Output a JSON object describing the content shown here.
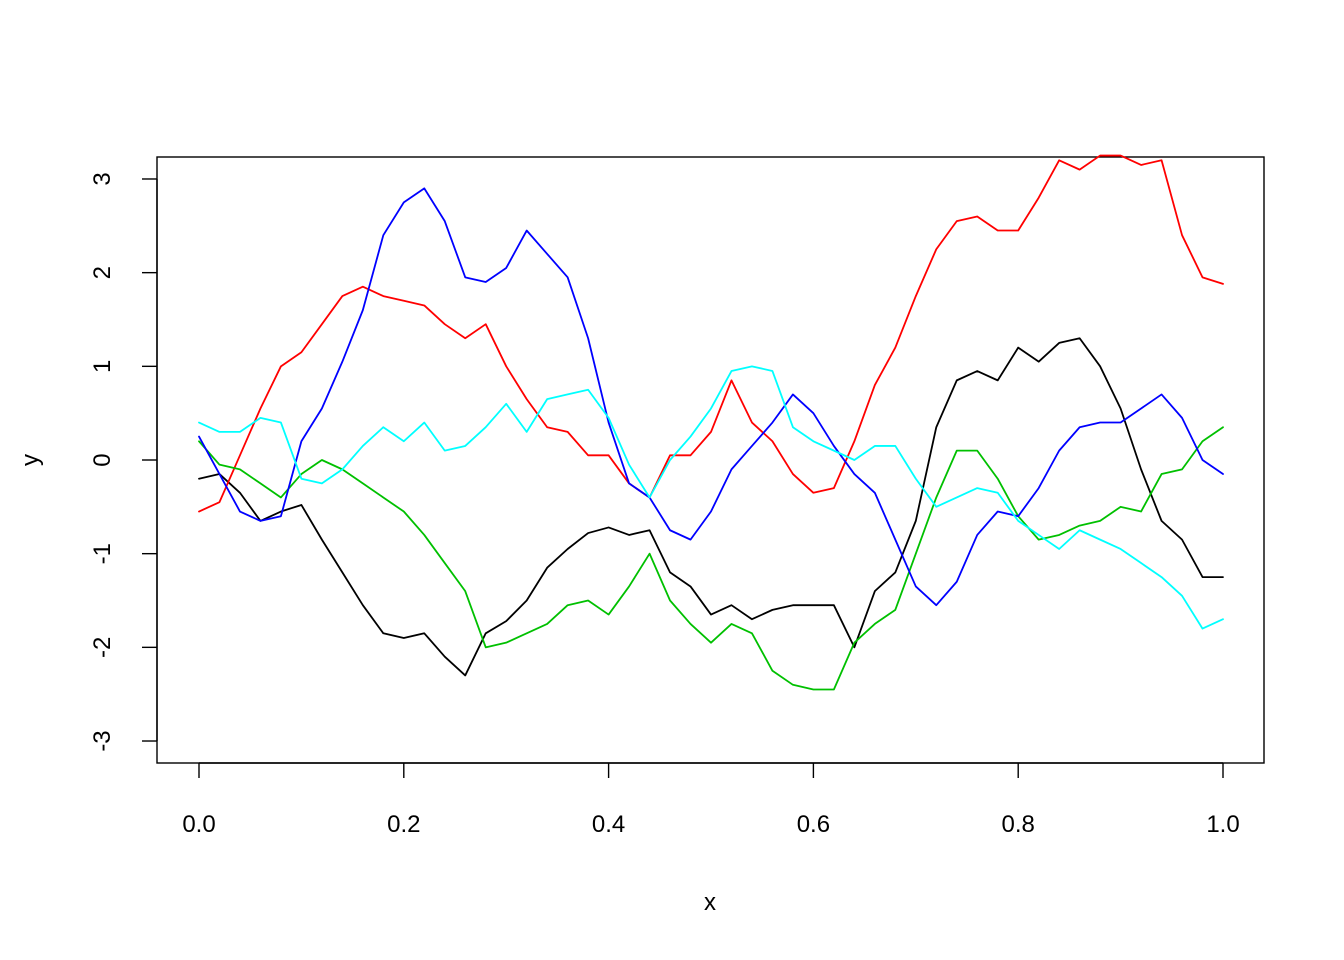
{
  "chart_data": {
    "type": "line",
    "title": "",
    "xlabel": "x",
    "ylabel": "y",
    "xlim": [
      0,
      1
    ],
    "ylim": [
      -3.25,
      3.25
    ],
    "grid": false,
    "x_ticks": [
      {
        "value": 0.0,
        "label": "0.0"
      },
      {
        "value": 0.2,
        "label": "0.2"
      },
      {
        "value": 0.4,
        "label": "0.4"
      },
      {
        "value": 0.6,
        "label": "0.6"
      },
      {
        "value": 0.8,
        "label": "0.8"
      },
      {
        "value": 1.0,
        "label": "1.0"
      }
    ],
    "y_ticks": [
      {
        "value": -3,
        "label": "-3"
      },
      {
        "value": -2,
        "label": "-2"
      },
      {
        "value": -1,
        "label": "-1"
      },
      {
        "value": 0,
        "label": "0"
      },
      {
        "value": 1,
        "label": "1"
      },
      {
        "value": 2,
        "label": "2"
      },
      {
        "value": 3,
        "label": "3"
      }
    ],
    "x": [
      0.0,
      0.02,
      0.04,
      0.06,
      0.08,
      0.1,
      0.12,
      0.14,
      0.16,
      0.18,
      0.2,
      0.22,
      0.24,
      0.26,
      0.28,
      0.3,
      0.32,
      0.34,
      0.36,
      0.38,
      0.4,
      0.42,
      0.44,
      0.46,
      0.48,
      0.5,
      0.52,
      0.54,
      0.56,
      0.58,
      0.6,
      0.62,
      0.64,
      0.66,
      0.68,
      0.7,
      0.72,
      0.74,
      0.76,
      0.78,
      0.8,
      0.82,
      0.84,
      0.86,
      0.88,
      0.9,
      0.92,
      0.94,
      0.96,
      0.98,
      1.0
    ],
    "series": [
      {
        "color": "#000000",
        "values": [
          -0.2,
          -0.15,
          -0.35,
          -0.65,
          -0.55,
          -0.48,
          -0.85,
          -1.2,
          -1.55,
          -1.85,
          -1.9,
          -1.85,
          -2.1,
          -2.3,
          -1.85,
          -1.72,
          -1.5,
          -1.15,
          -0.95,
          -0.78,
          -0.72,
          -0.8,
          -0.75,
          -1.2,
          -1.35,
          -1.65,
          -1.55,
          -1.7,
          -1.6,
          -1.55,
          -1.55,
          -1.55,
          -2.0,
          -1.4,
          -1.2,
          -0.65,
          0.35,
          0.85,
          0.95,
          0.85,
          1.2,
          1.05,
          1.25,
          1.3,
          1.0,
          0.55,
          -0.1,
          -0.65,
          -0.85,
          -1.25,
          -1.25
        ]
      },
      {
        "color": "#ff0000",
        "values": [
          -0.55,
          -0.45,
          0.05,
          0.55,
          1.0,
          1.15,
          1.45,
          1.75,
          1.85,
          1.75,
          1.7,
          1.65,
          1.45,
          1.3,
          1.45,
          1.0,
          0.65,
          0.35,
          0.3,
          0.05,
          0.05,
          -0.25,
          -0.4,
          0.05,
          0.05,
          0.3,
          0.85,
          0.4,
          0.2,
          -0.15,
          -0.35,
          -0.3,
          0.2,
          0.8,
          1.2,
          1.75,
          2.25,
          2.55,
          2.6,
          2.45,
          2.45,
          2.8,
          3.2,
          3.1,
          3.25,
          3.25,
          3.15,
          3.2,
          2.4,
          1.95,
          1.88
        ]
      },
      {
        "color": "#00c000",
        "values": [
          0.2,
          -0.05,
          -0.1,
          -0.25,
          -0.4,
          -0.15,
          0.0,
          -0.1,
          -0.25,
          -0.4,
          -0.55,
          -0.8,
          -1.1,
          -1.4,
          -2.0,
          -1.95,
          -1.85,
          -1.75,
          -1.55,
          -1.5,
          -1.65,
          -1.35,
          -1.0,
          -1.5,
          -1.75,
          -1.95,
          -1.75,
          -1.85,
          -2.25,
          -2.4,
          -2.45,
          -2.45,
          -1.95,
          -1.75,
          -1.6,
          -1.0,
          -0.4,
          0.1,
          0.1,
          -0.2,
          -0.6,
          -0.85,
          -0.8,
          -0.7,
          -0.65,
          -0.5,
          -0.55,
          -0.15,
          -0.1,
          0.2,
          0.35
        ]
      },
      {
        "color": "#0000ff",
        "values": [
          0.25,
          -0.15,
          -0.55,
          -0.65,
          -0.6,
          0.2,
          0.55,
          1.05,
          1.6,
          2.4,
          2.75,
          2.9,
          2.55,
          1.95,
          1.9,
          2.05,
          2.45,
          2.2,
          1.95,
          1.3,
          0.4,
          -0.25,
          -0.4,
          -0.75,
          -0.85,
          -0.55,
          -0.1,
          0.15,
          0.4,
          0.7,
          0.5,
          0.15,
          -0.15,
          -0.35,
          -0.85,
          -1.35,
          -1.55,
          -1.3,
          -0.8,
          -0.55,
          -0.6,
          -0.3,
          0.1,
          0.35,
          0.4,
          0.4,
          0.55,
          0.7,
          0.45,
          0.0,
          -0.15
        ]
      },
      {
        "color": "#00ffff",
        "values": [
          0.4,
          0.3,
          0.3,
          0.45,
          0.4,
          -0.2,
          -0.25,
          -0.1,
          0.15,
          0.35,
          0.2,
          0.4,
          0.1,
          0.15,
          0.35,
          0.6,
          0.3,
          0.65,
          0.7,
          0.75,
          0.45,
          -0.05,
          -0.4,
          0.0,
          0.25,
          0.55,
          0.95,
          1.0,
          0.95,
          0.35,
          0.2,
          0.1,
          0.0,
          0.15,
          0.15,
          -0.2,
          -0.5,
          -0.4,
          -0.3,
          -0.35,
          -0.65,
          -0.8,
          -0.95,
          -0.75,
          -0.85,
          -0.95,
          -1.1,
          -1.25,
          -1.45,
          -1.8,
          -1.7
        ]
      }
    ]
  }
}
